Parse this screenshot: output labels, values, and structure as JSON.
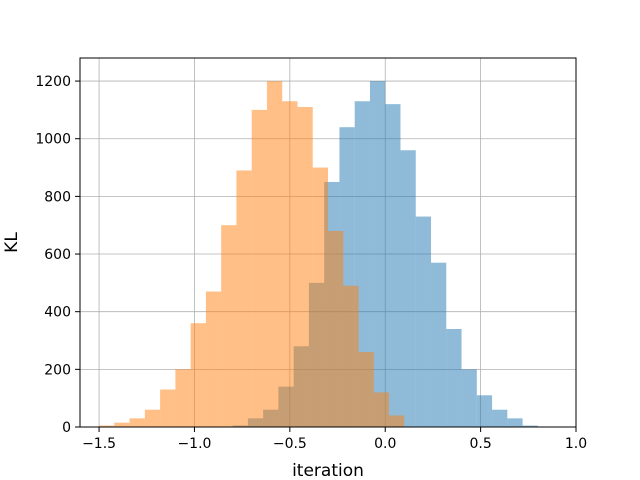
{
  "chart_data": {
    "type": "bar",
    "title": "",
    "xlabel": "iteration",
    "ylabel": "KL",
    "xlim": [
      -1.6,
      1.0
    ],
    "ylim": [
      0,
      1280
    ],
    "xticks": [
      -1.5,
      -1.0,
      -0.5,
      0.0,
      0.5,
      1.0
    ],
    "xtick_labels": [
      "−1.5",
      "−1.0",
      "−0.5",
      "0.0",
      "0.5",
      "1.0"
    ],
    "yticks": [
      0,
      200,
      400,
      600,
      800,
      1000,
      1200
    ],
    "ytick_labels": [
      "0",
      "200",
      "400",
      "600",
      "800",
      "1000",
      "1200"
    ],
    "grid": true,
    "legend": "none",
    "series": [
      {
        "color": "#1f77b4",
        "opacity": 0.5,
        "bin_width": 0.08,
        "bin_starts": [
          -0.8,
          -0.72,
          -0.64,
          -0.56,
          -0.48,
          -0.4,
          -0.32,
          -0.24,
          -0.16,
          -0.08,
          0.0,
          0.08,
          0.16,
          0.24,
          0.32,
          0.4,
          0.48,
          0.56,
          0.64,
          0.72
        ],
        "values": [
          5,
          30,
          60,
          140,
          280,
          500,
          850,
          1040,
          1130,
          1200,
          1120,
          960,
          730,
          570,
          340,
          200,
          110,
          60,
          30,
          5
        ]
      },
      {
        "color": "#ff7f0e",
        "opacity": 0.5,
        "bin_width": 0.08,
        "bin_starts": [
          -1.5,
          -1.42,
          -1.34,
          -1.26,
          -1.18,
          -1.1,
          -1.02,
          -0.94,
          -0.86,
          -0.78,
          -0.7,
          -0.62,
          -0.54,
          -0.46,
          -0.38,
          -0.3,
          -0.22,
          -0.14,
          -0.06,
          0.02
        ],
        "values": [
          5,
          15,
          30,
          60,
          130,
          200,
          360,
          470,
          700,
          890,
          1100,
          1200,
          1130,
          1110,
          900,
          680,
          490,
          260,
          120,
          40
        ]
      }
    ]
  }
}
